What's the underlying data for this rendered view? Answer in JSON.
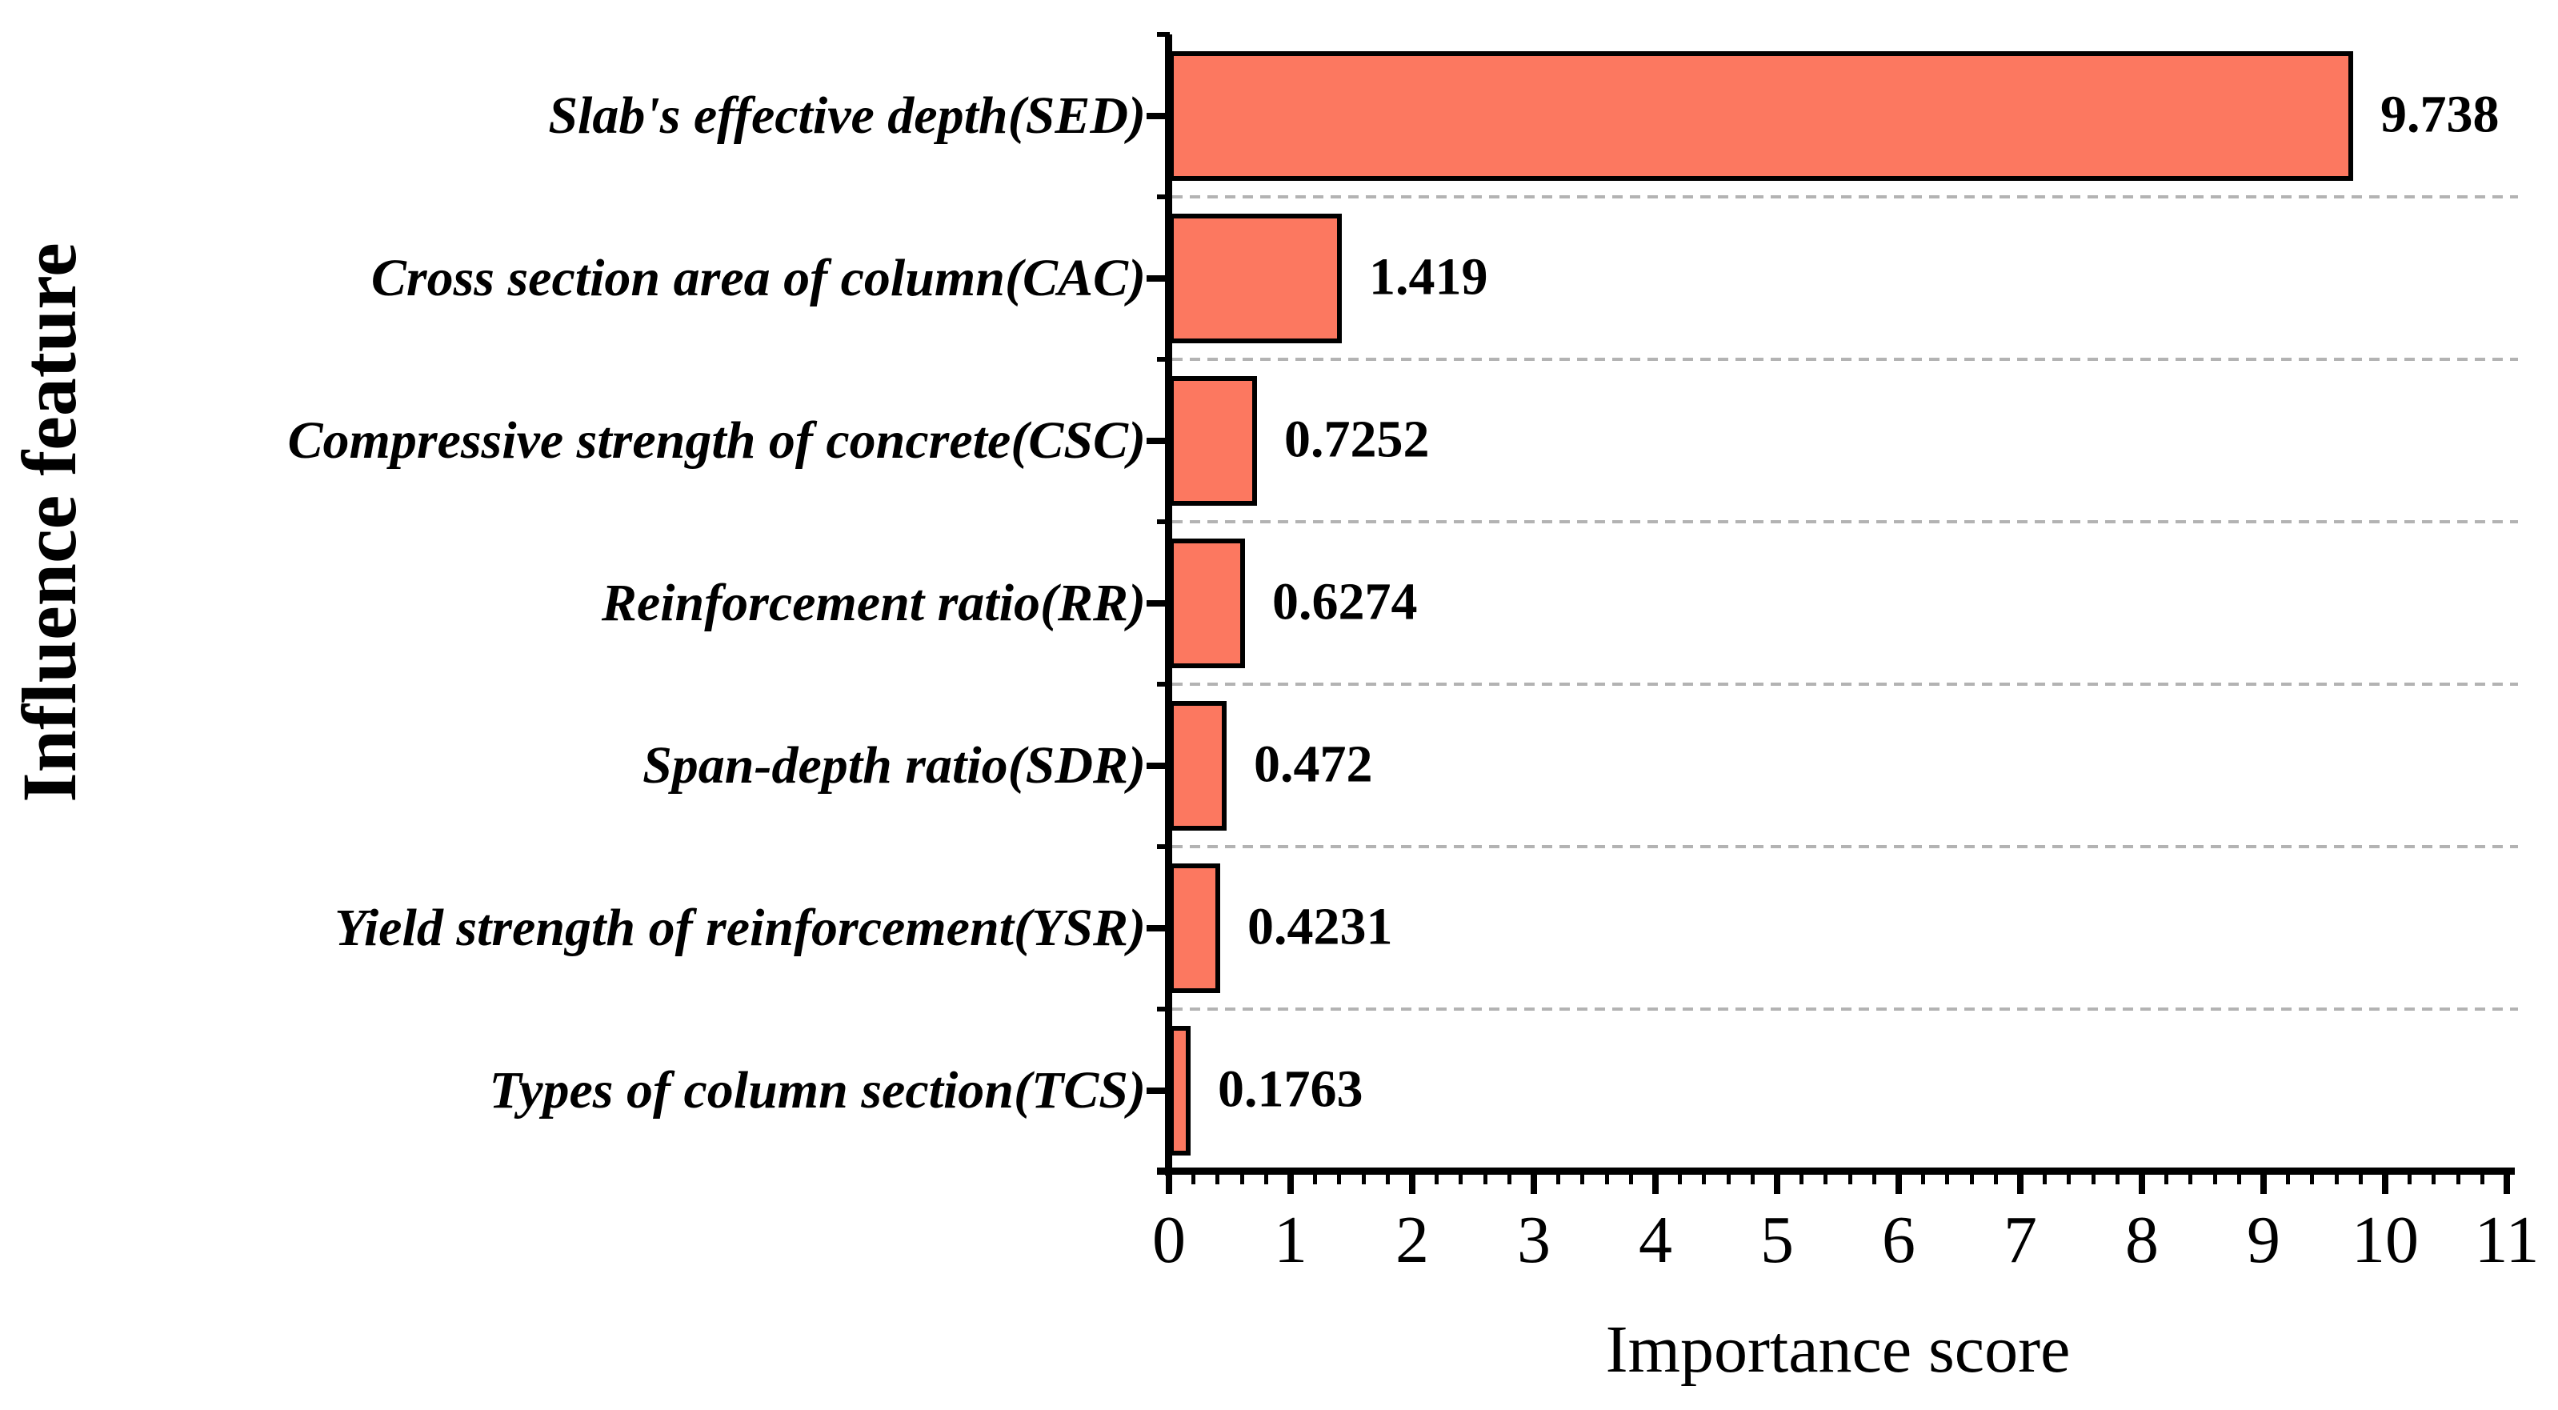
{
  "chart_data": {
    "type": "bar",
    "orientation": "horizontal",
    "title": "",
    "xlabel": "Importance score",
    "ylabel": "Influence feature",
    "categories": [
      "Slab's effective depth(SED)",
      "Cross section area of column(CAC)",
      "Compressive strength of concrete(CSC)",
      "Reinforcement ratio(RR)",
      "Span-depth ratio(SDR)",
      "Yield strength of reinforcement(YSR)",
      "Types of column section(TCS)"
    ],
    "values": [
      9.738,
      1.419,
      0.7252,
      0.6274,
      0.472,
      0.4231,
      0.1763
    ],
    "value_labels": [
      "9.738",
      "1.419",
      "0.7252",
      "0.6274",
      "0.472",
      "0.4231",
      "0.1763"
    ],
    "xlim": [
      0,
      11
    ],
    "x_ticks": [
      "0",
      "1",
      "2",
      "3",
      "4",
      "5",
      "6",
      "7",
      "8",
      "9",
      "10",
      "11"
    ],
    "x_minor_tick_interval": 0.2,
    "grid": "dashed gray horizontal separators between category bands",
    "legend": "none",
    "colors": {
      "bar_fill": "#FC7860",
      "bar_border": "#000000",
      "gridline": "#b3b3b3",
      "axis": "#000000",
      "text": "#000000",
      "background": "#ffffff"
    }
  }
}
